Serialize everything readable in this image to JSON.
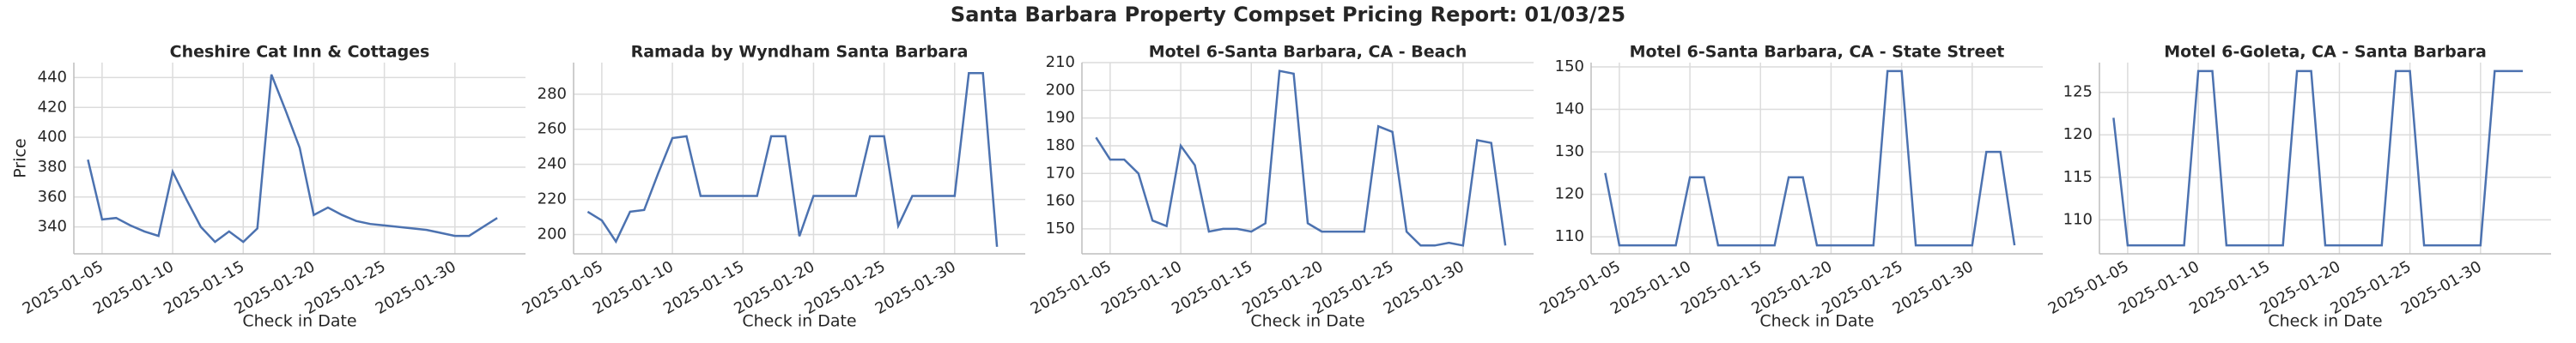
{
  "title": "Santa Barbara Property Compset Pricing Report: 01/03/25",
  "chart_data": [
    {
      "type": "line",
      "title": "Cheshire Cat Inn & Cottages",
      "xlabel": "Check in Date",
      "ylabel": "Price",
      "color": "#4c72b0",
      "grid": true,
      "x": [
        "2025-01-04",
        "2025-01-05",
        "2025-01-06",
        "2025-01-07",
        "2025-01-08",
        "2025-01-09",
        "2025-01-10",
        "2025-01-11",
        "2025-01-12",
        "2025-01-13",
        "2025-01-14",
        "2025-01-15",
        "2025-01-16",
        "2025-01-17",
        "2025-01-18",
        "2025-01-19",
        "2025-01-20",
        "2025-01-21",
        "2025-01-22",
        "2025-01-23",
        "2025-01-24",
        "2025-01-25",
        "2025-01-26",
        "2025-01-27",
        "2025-01-28",
        "2025-01-29",
        "2025-01-30",
        "2025-01-31",
        "2025-02-01",
        "2025-02-02"
      ],
      "values": [
        385,
        345,
        346,
        341,
        337,
        334,
        377,
        358,
        340,
        330,
        337,
        330,
        339,
        442,
        418,
        393,
        348,
        353,
        348,
        344,
        342,
        341,
        340,
        339,
        338,
        336,
        334,
        334,
        340,
        346
      ],
      "xlim": [
        "2025-01-03",
        "2025-02-04"
      ],
      "xticks": [
        "2025-01-05",
        "2025-01-10",
        "2025-01-15",
        "2025-01-20",
        "2025-01-25",
        "2025-01-30"
      ],
      "ylim": [
        322,
        450
      ],
      "yticks": [
        340,
        360,
        380,
        400,
        420,
        440
      ]
    },
    {
      "type": "line",
      "title": "Ramada by Wyndham Santa Barbara",
      "xlabel": "Check in Date",
      "color": "#4c72b0",
      "grid": true,
      "x": [
        "2025-01-04",
        "2025-01-05",
        "2025-01-06",
        "2025-01-07",
        "2025-01-08",
        "2025-01-09",
        "2025-01-10",
        "2025-01-11",
        "2025-01-12",
        "2025-01-13",
        "2025-01-14",
        "2025-01-15",
        "2025-01-16",
        "2025-01-17",
        "2025-01-18",
        "2025-01-19",
        "2025-01-20",
        "2025-01-21",
        "2025-01-22",
        "2025-01-23",
        "2025-01-24",
        "2025-01-25",
        "2025-01-26",
        "2025-01-27",
        "2025-01-28",
        "2025-01-29",
        "2025-01-30",
        "2025-01-31",
        "2025-02-01",
        "2025-02-02"
      ],
      "values": [
        213,
        208,
        196,
        213,
        214,
        235,
        255,
        256,
        222,
        222,
        222,
        222,
        222,
        256,
        256,
        199,
        222,
        222,
        222,
        222,
        256,
        256,
        205,
        222,
        222,
        222,
        222,
        292,
        292,
        193
      ],
      "xlim": [
        "2025-01-03",
        "2025-02-04"
      ],
      "xticks": [
        "2025-01-05",
        "2025-01-10",
        "2025-01-15",
        "2025-01-20",
        "2025-01-25",
        "2025-01-30"
      ],
      "ylim": [
        189,
        298
      ],
      "yticks": [
        200,
        220,
        240,
        260,
        280
      ]
    },
    {
      "type": "line",
      "title": "Motel 6-Santa Barbara, CA - Beach",
      "xlabel": "Check in Date",
      "color": "#4c72b0",
      "grid": true,
      "x": [
        "2025-01-04",
        "2025-01-05",
        "2025-01-06",
        "2025-01-07",
        "2025-01-08",
        "2025-01-09",
        "2025-01-10",
        "2025-01-11",
        "2025-01-12",
        "2025-01-13",
        "2025-01-14",
        "2025-01-15",
        "2025-01-16",
        "2025-01-17",
        "2025-01-18",
        "2025-01-19",
        "2025-01-20",
        "2025-01-21",
        "2025-01-22",
        "2025-01-23",
        "2025-01-24",
        "2025-01-25",
        "2025-01-26",
        "2025-01-27",
        "2025-01-28",
        "2025-01-29",
        "2025-01-30",
        "2025-01-31",
        "2025-02-01",
        "2025-02-02"
      ],
      "values": [
        183,
        175,
        175,
        170,
        153,
        151,
        180,
        173,
        149,
        150,
        150,
        149,
        152,
        207,
        206,
        152,
        149,
        149,
        149,
        149,
        187,
        185,
        149,
        144,
        144,
        145,
        144,
        182,
        181,
        144
      ],
      "xlim": [
        "2025-01-03",
        "2025-02-04"
      ],
      "xticks": [
        "2025-01-05",
        "2025-01-10",
        "2025-01-15",
        "2025-01-20",
        "2025-01-25",
        "2025-01-30"
      ],
      "ylim": [
        141,
        210
      ],
      "yticks": [
        150,
        160,
        170,
        180,
        190,
        200,
        210
      ]
    },
    {
      "type": "line",
      "title": "Motel 6-Santa Barbara, CA - State Street",
      "xlabel": "Check in Date",
      "color": "#4c72b0",
      "grid": true,
      "x": [
        "2025-01-04",
        "2025-01-05",
        "2025-01-06",
        "2025-01-07",
        "2025-01-08",
        "2025-01-09",
        "2025-01-10",
        "2025-01-11",
        "2025-01-12",
        "2025-01-13",
        "2025-01-14",
        "2025-01-15",
        "2025-01-16",
        "2025-01-17",
        "2025-01-18",
        "2025-01-19",
        "2025-01-20",
        "2025-01-21",
        "2025-01-22",
        "2025-01-23",
        "2025-01-24",
        "2025-01-25",
        "2025-01-26",
        "2025-01-27",
        "2025-01-28",
        "2025-01-29",
        "2025-01-30",
        "2025-01-31",
        "2025-02-01",
        "2025-02-02"
      ],
      "values": [
        125,
        108,
        108,
        108,
        108,
        108,
        124,
        124,
        108,
        108,
        108,
        108,
        108,
        124,
        124,
        108,
        108,
        108,
        108,
        108,
        149,
        149,
        108,
        108,
        108,
        108,
        108,
        130,
        130,
        108
      ],
      "xlim": [
        "2025-01-03",
        "2025-02-04"
      ],
      "xticks": [
        "2025-01-05",
        "2025-01-10",
        "2025-01-15",
        "2025-01-20",
        "2025-01-25",
        "2025-01-30"
      ],
      "ylim": [
        106,
        151
      ],
      "yticks": [
        110,
        120,
        130,
        140,
        150
      ]
    },
    {
      "type": "line",
      "title": "Motel 6-Goleta, CA - Santa Barbara",
      "xlabel": "Check in Date",
      "color": "#4c72b0",
      "grid": true,
      "x": [
        "2025-01-04",
        "2025-01-05",
        "2025-01-06",
        "2025-01-07",
        "2025-01-08",
        "2025-01-09",
        "2025-01-10",
        "2025-01-11",
        "2025-01-12",
        "2025-01-13",
        "2025-01-14",
        "2025-01-15",
        "2025-01-16",
        "2025-01-17",
        "2025-01-18",
        "2025-01-19",
        "2025-01-20",
        "2025-01-21",
        "2025-01-22",
        "2025-01-23",
        "2025-01-24",
        "2025-01-25",
        "2025-01-26",
        "2025-01-27",
        "2025-01-28",
        "2025-01-29",
        "2025-01-30",
        "2025-01-31",
        "2025-02-01",
        "2025-02-02"
      ],
      "values": [
        122,
        107,
        107,
        107,
        107,
        107,
        127.5,
        127.5,
        107,
        107,
        107,
        107,
        107,
        127.5,
        127.5,
        107,
        107,
        107,
        107,
        107,
        127.5,
        127.5,
        107,
        107,
        107,
        107,
        107,
        127.5,
        127.5,
        127.5
      ],
      "xlim": [
        "2025-01-03",
        "2025-02-04"
      ],
      "xticks": [
        "2025-01-05",
        "2025-01-10",
        "2025-01-15",
        "2025-01-20",
        "2025-01-25",
        "2025-01-30"
      ],
      "ylim": [
        106,
        128.5
      ],
      "yticks": [
        110,
        115,
        120,
        125
      ]
    }
  ]
}
